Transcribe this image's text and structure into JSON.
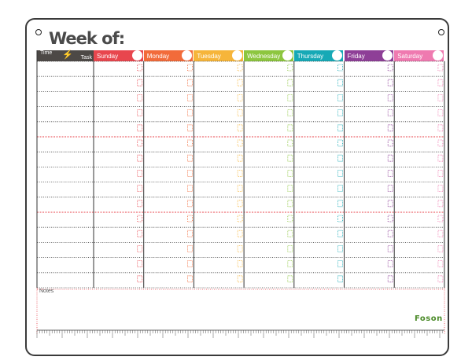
{
  "planner": {
    "title": "Week of:",
    "time_label": "Time",
    "task_label": "Task",
    "notes_label": "Notes",
    "brand": "Foson",
    "days": [
      {
        "name": "Sunday",
        "color": "#e8464e"
      },
      {
        "name": "Monday",
        "color": "#f26b3a"
      },
      {
        "name": "Tuesday",
        "color": "#f6b53a"
      },
      {
        "name": "Wednesday",
        "color": "#8dc63f"
      },
      {
        "name": "Thursday",
        "color": "#16a9b6"
      },
      {
        "name": "Friday",
        "color": "#8e3f97"
      },
      {
        "name": "Saturday",
        "color": "#ef7ab0"
      }
    ],
    "row_count": 15,
    "red_dividers_after_rows": [
      5,
      10
    ],
    "accent_line_color": "#e8464e",
    "header_dark_color": "#4d4946"
  }
}
